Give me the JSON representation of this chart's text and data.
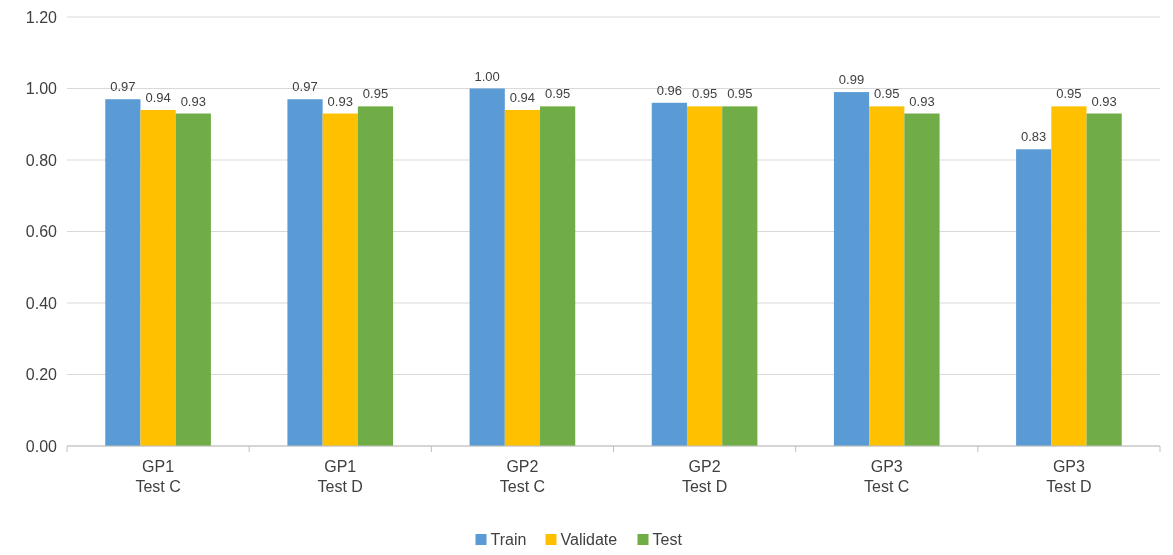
{
  "chart_data": {
    "type": "bar",
    "categories": [
      "GP1\nTest C",
      "GP1\nTest D",
      "GP2\nTest C",
      "GP2\nTest D",
      "GP3\nTest C",
      "GP3\nTest D"
    ],
    "series": [
      {
        "name": "Train",
        "color": "#5b9bd5",
        "values": [
          0.97,
          0.97,
          1.0,
          0.96,
          0.99,
          0.83
        ],
        "value_labels": [
          "0.97",
          "0.97",
          "1.00",
          "0.96",
          "0.99",
          "0.83"
        ]
      },
      {
        "name": "Validate",
        "color": "#ffc000",
        "values": [
          0.94,
          0.93,
          0.94,
          0.95,
          0.95,
          0.95
        ],
        "value_labels": [
          "0.94",
          "0.93",
          "0.94",
          "0.95",
          "0.95",
          "0.95"
        ]
      },
      {
        "name": "Test",
        "color": "#70ad47",
        "values": [
          0.93,
          0.95,
          0.95,
          0.95,
          0.93,
          0.93
        ],
        "value_labels": [
          "0.93",
          "0.95",
          "0.95",
          "0.95",
          "0.93",
          "0.93"
        ]
      }
    ],
    "ylim": [
      0,
      1.2
    ],
    "yticks": [
      {
        "value": 0,
        "label": "0.00"
      },
      {
        "value": 0.2,
        "label": "0.20"
      },
      {
        "value": 0.4,
        "label": "0.40"
      },
      {
        "value": 0.6,
        "label": "0.60"
      },
      {
        "value": 0.8,
        "label": "0.80"
      },
      {
        "value": 1,
        "label": "1.00"
      },
      {
        "value": 1.2,
        "label": "1.20"
      }
    ],
    "grid": "y",
    "legend": "bottom"
  }
}
